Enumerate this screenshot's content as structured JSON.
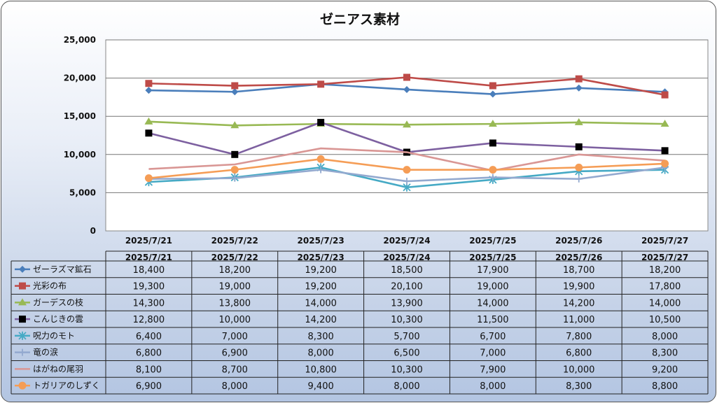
{
  "chart_data": {
    "type": "line",
    "title": "ゼニアス素材",
    "categories": [
      "2025/7/21",
      "2025/7/22",
      "2025/7/23",
      "2025/7/24",
      "2025/7/25",
      "2025/7/26",
      "2025/7/27"
    ],
    "y_ticks": [
      "0",
      "5,000",
      "10,000",
      "15,000",
      "20,000",
      "25,000"
    ],
    "ylim": [
      0,
      25000
    ],
    "grid": "horizontal",
    "legend": "data-table",
    "series": [
      {
        "name": "ゼーラズマ鉱石",
        "color": "#4a7ebb",
        "marker": "diamond",
        "values": [
          18400,
          18200,
          19200,
          18500,
          17900,
          18700,
          18200
        ],
        "labels": [
          "18,400",
          "18,200",
          "19,200",
          "18,500",
          "17,900",
          "18,700",
          "18,200"
        ]
      },
      {
        "name": "光彩の布",
        "color": "#be4b48",
        "marker": "square",
        "values": [
          19300,
          19000,
          19200,
          20100,
          19000,
          19900,
          17800
        ],
        "labels": [
          "19,300",
          "19,000",
          "19,200",
          "20,100",
          "19,000",
          "19,900",
          "17,800"
        ]
      },
      {
        "name": "ガーデスの枝",
        "color": "#98b954",
        "marker": "triangle",
        "values": [
          14300,
          13800,
          14000,
          13900,
          14000,
          14200,
          14000
        ],
        "labels": [
          "14,300",
          "13,800",
          "14,000",
          "13,900",
          "14,000",
          "14,200",
          "14,000"
        ]
      },
      {
        "name": "こんじきの雲",
        "color": "#7d60a0",
        "marker": "square-black",
        "values": [
          12800,
          10000,
          14200,
          10300,
          11500,
          11000,
          10500
        ],
        "labels": [
          "12,800",
          "10,000",
          "14,200",
          "10,300",
          "11,500",
          "11,000",
          "10,500"
        ]
      },
      {
        "name": "呪力のモト",
        "color": "#46aac5",
        "marker": "star",
        "values": [
          6400,
          7000,
          8300,
          5700,
          6700,
          7800,
          8000
        ],
        "labels": [
          "6,400",
          "7,000",
          "8,300",
          "5,700",
          "6,700",
          "7,800",
          "8,000"
        ]
      },
      {
        "name": "竜の涙",
        "color": "#93a9cf",
        "marker": "plus",
        "values": [
          6800,
          6900,
          8000,
          6500,
          7000,
          6800,
          8300
        ],
        "labels": [
          "6,800",
          "6,900",
          "8,000",
          "6,500",
          "7,000",
          "6,800",
          "8,300"
        ]
      },
      {
        "name": "はがねの尾羽",
        "color": "#d99694",
        "marker": "none",
        "values": [
          8100,
          8700,
          10800,
          10300,
          7900,
          10000,
          9200
        ],
        "labels": [
          "8,100",
          "8,700",
          "10,800",
          "10,300",
          "7,900",
          "10,000",
          "9,200"
        ]
      },
      {
        "name": "トガリアのしずく",
        "color": "#f59d56",
        "marker": "circle",
        "values": [
          6900,
          8000,
          9400,
          8000,
          8000,
          8300,
          8800
        ],
        "labels": [
          "6,900",
          "8,000",
          "9,400",
          "8,000",
          "8,000",
          "8,300",
          "8,800"
        ]
      }
    ]
  }
}
